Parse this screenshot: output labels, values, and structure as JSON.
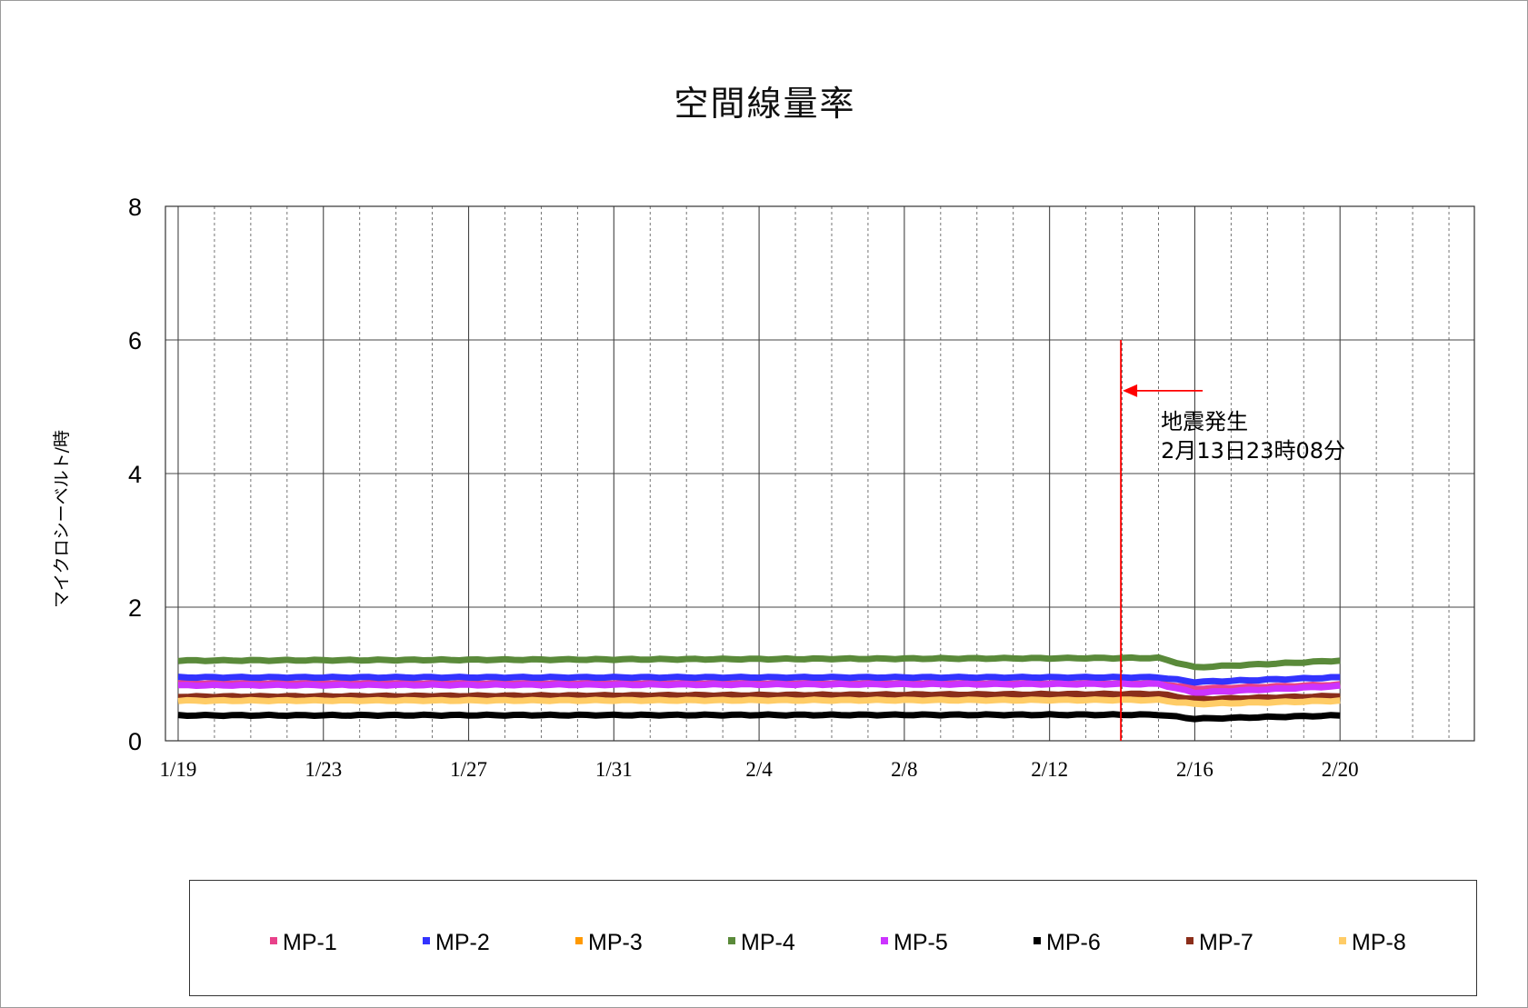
{
  "chart_data": {
    "type": "line",
    "title": "空間線量率",
    "xlabel": "",
    "ylabel": "マイクロシーベルト/時",
    "ylim": [
      0,
      8
    ],
    "yticks": [
      0,
      2,
      4,
      6,
      8
    ],
    "x_tick_labels": [
      "1/19",
      "1/23",
      "1/27",
      "1/31",
      "2/4",
      "2/8",
      "2/12",
      "2/16",
      "2/20"
    ],
    "grid": true,
    "legend_position": "bottom",
    "annotation": {
      "line1": "地震発生",
      "line2": "2月13日23時08分",
      "x": "2/13 23:08",
      "color": "#ff0000"
    },
    "series": [
      {
        "name": "MP-1",
        "color": "#e8418a",
        "x": [
          "1/19",
          "2/15",
          "2/16",
          "2/20"
        ],
        "values": [
          0.86,
          0.86,
          0.78,
          0.84
        ]
      },
      {
        "name": "MP-2",
        "color": "#3333ff",
        "x": [
          "1/19",
          "2/15",
          "2/16",
          "2/20"
        ],
        "values": [
          0.95,
          0.95,
          0.88,
          0.95
        ]
      },
      {
        "name": "MP-3",
        "color": "#ff9900",
        "x": [
          "1/19",
          "2/15",
          "2/16",
          "2/20"
        ],
        "values": [
          0.63,
          0.63,
          0.58,
          0.63
        ]
      },
      {
        "name": "MP-4",
        "color": "#5a8a3a",
        "x": [
          "1/19",
          "2/15",
          "2/16",
          "2/20"
        ],
        "values": [
          1.2,
          1.24,
          1.1,
          1.2
        ]
      },
      {
        "name": "MP-5",
        "color": "#cc33ff",
        "x": [
          "1/19",
          "2/15",
          "2/16",
          "2/20"
        ],
        "values": [
          0.83,
          0.85,
          0.72,
          0.82
        ]
      },
      {
        "name": "MP-6",
        "color": "#000000",
        "x": [
          "1/19",
          "2/15",
          "2/16",
          "2/20"
        ],
        "values": [
          0.38,
          0.39,
          0.33,
          0.38
        ]
      },
      {
        "name": "MP-7",
        "color": "#8b2e1a",
        "x": [
          "1/19",
          "2/15",
          "2/16",
          "2/20"
        ],
        "values": [
          0.66,
          0.7,
          0.62,
          0.67
        ]
      },
      {
        "name": "MP-8",
        "color": "#ffcc66",
        "x": [
          "1/19",
          "2/15",
          "2/16",
          "2/20"
        ],
        "values": [
          0.6,
          0.61,
          0.55,
          0.6
        ]
      }
    ]
  }
}
